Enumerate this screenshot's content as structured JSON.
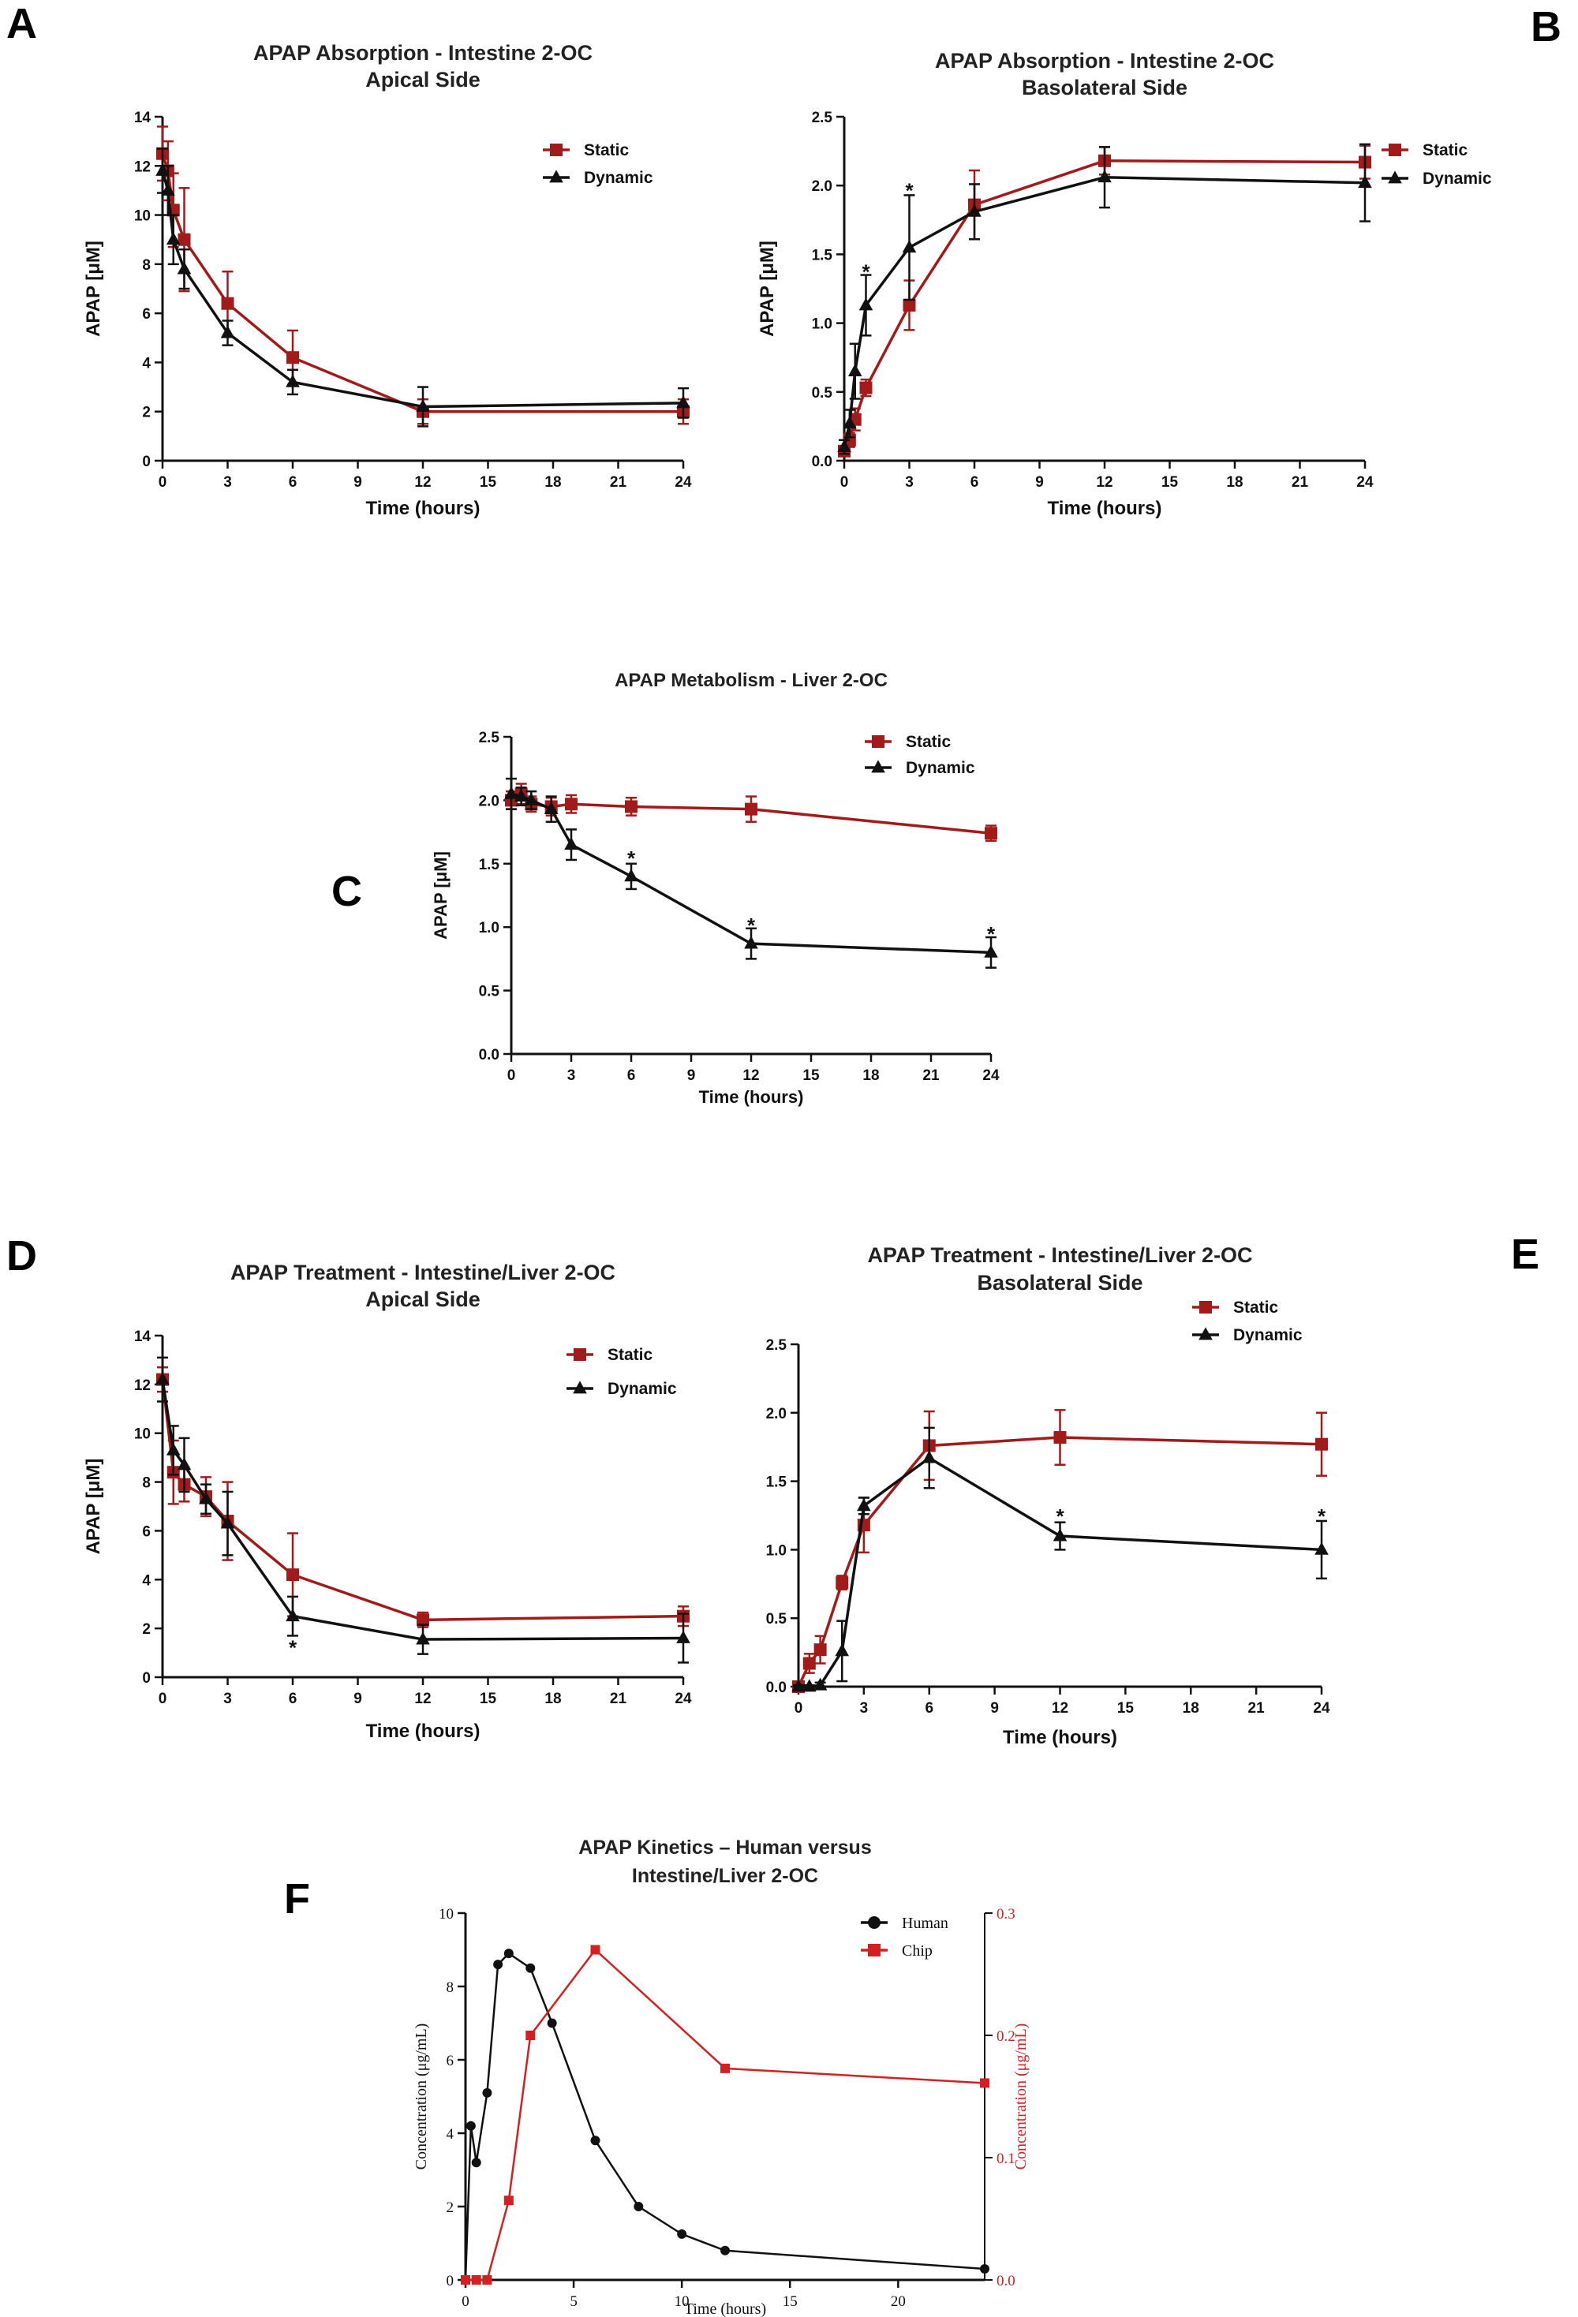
{
  "colors": {
    "static": "#a31a1a",
    "dynamic": "#111111",
    "human": "#111111",
    "chip": "#d42020"
  },
  "chart_data": [
    {
      "id": "A",
      "panel_label": "A",
      "type": "line",
      "title": [
        "APAP Absorption - Intestine 2-OC",
        "Apical Side"
      ],
      "xlabel": "Time (hours)",
      "ylabel": "APAP [μM]",
      "xlim": [
        0,
        24
      ],
      "xticks": [
        0,
        3,
        6,
        9,
        12,
        15,
        18,
        21,
        24
      ],
      "ylim": [
        0,
        14
      ],
      "yticks": [
        0,
        2,
        4,
        6,
        8,
        10,
        12,
        14
      ],
      "ytick_labels": [
        "0",
        "2",
        "4",
        "6",
        "8",
        "10",
        "12",
        "14"
      ],
      "legend": "top-right",
      "series": [
        {
          "name": "Static",
          "marker": "square",
          "color_key": "static",
          "x": [
            0,
            0.25,
            0.5,
            1,
            3,
            6,
            12,
            24
          ],
          "y": [
            12.5,
            11.8,
            10.2,
            9.0,
            6.4,
            4.2,
            2.0,
            2.0
          ],
          "err": [
            1.1,
            1.2,
            1.5,
            2.1,
            1.3,
            1.1,
            0.5,
            0.5
          ]
        },
        {
          "name": "Dynamic",
          "marker": "triangle",
          "color_key": "dynamic",
          "x": [
            0,
            0.25,
            0.5,
            1,
            3,
            6,
            12,
            24
          ],
          "y": [
            11.8,
            11.0,
            9.0,
            7.8,
            5.2,
            3.2,
            2.2,
            2.35
          ],
          "err": [
            0.9,
            1.0,
            1.0,
            0.8,
            0.5,
            0.5,
            0.8,
            0.6
          ]
        }
      ],
      "annotations": []
    },
    {
      "id": "B",
      "panel_label": "B",
      "type": "line",
      "title": [
        "APAP Absorption - Intestine 2-OC",
        "Basolateral Side"
      ],
      "xlabel": "Time (hours)",
      "ylabel": "APAP [μM]",
      "xlim": [
        0,
        24
      ],
      "xticks": [
        0,
        3,
        6,
        9,
        12,
        15,
        18,
        21,
        24
      ],
      "ylim": [
        0,
        2.5
      ],
      "yticks": [
        0,
        0.5,
        1,
        1.5,
        2,
        2.5
      ],
      "ytick_labels": [
        "0.0",
        "0.5",
        "1.0",
        "1.5",
        "2.0",
        "2.5"
      ],
      "legend": "top-right",
      "series": [
        {
          "name": "Static",
          "marker": "square",
          "color_key": "static",
          "x": [
            0,
            0.25,
            0.5,
            1,
            3,
            6,
            12,
            24
          ],
          "y": [
            0.07,
            0.15,
            0.3,
            0.53,
            1.13,
            1.86,
            2.18,
            2.17
          ],
          "err": [
            0.03,
            0.05,
            0.08,
            0.06,
            0.18,
            0.25,
            0.1,
            0.12
          ]
        },
        {
          "name": "Dynamic",
          "marker": "triangle",
          "color_key": "dynamic",
          "x": [
            0,
            0.25,
            0.5,
            1,
            3,
            6,
            12,
            24
          ],
          "y": [
            0.1,
            0.27,
            0.65,
            1.13,
            1.55,
            1.81,
            2.06,
            2.02
          ],
          "err": [
            0.05,
            0.1,
            0.2,
            0.22,
            0.38,
            0.2,
            0.22,
            0.28
          ]
        }
      ],
      "annotations": [
        {
          "text": "*",
          "x": 1,
          "y": 1.38
        },
        {
          "text": "*",
          "x": 3,
          "y": 1.97
        }
      ]
    },
    {
      "id": "C",
      "panel_label": "C",
      "type": "line",
      "title": [
        "APAP Metabolism - Liver 2-OC"
      ],
      "xlabel": "Time (hours)",
      "ylabel": "APAP [μM]",
      "xlim": [
        0,
        24
      ],
      "xticks": [
        0,
        3,
        6,
        9,
        12,
        15,
        18,
        21,
        24
      ],
      "ylim": [
        0,
        2.5
      ],
      "yticks": [
        0,
        0.5,
        1,
        1.5,
        2,
        2.5
      ],
      "ytick_labels": [
        "0.0",
        "0.5",
        "1.0",
        "1.5",
        "2.0",
        "2.5"
      ],
      "legend": "top-right",
      "series": [
        {
          "name": "Static",
          "marker": "square",
          "color_key": "static",
          "x": [
            0,
            0.5,
            1,
            2,
            3,
            6,
            12,
            24
          ],
          "y": [
            2.0,
            2.05,
            1.97,
            1.95,
            1.97,
            1.95,
            1.93,
            1.74
          ],
          "err": [
            0.07,
            0.08,
            0.06,
            0.07,
            0.07,
            0.07,
            0.1,
            0.06
          ]
        },
        {
          "name": "Dynamic",
          "marker": "triangle",
          "color_key": "dynamic",
          "x": [
            0,
            0.5,
            1,
            2,
            3,
            6,
            12,
            24
          ],
          "y": [
            2.05,
            2.03,
            2.0,
            1.93,
            1.65,
            1.4,
            0.87,
            0.8
          ],
          "err": [
            0.12,
            0.07,
            0.07,
            0.1,
            0.12,
            0.1,
            0.12,
            0.12
          ]
        }
      ],
      "annotations": [
        {
          "text": "*",
          "x": 6,
          "y": 1.55
        },
        {
          "text": "*",
          "x": 12,
          "y": 1.02
        },
        {
          "text": "*",
          "x": 24,
          "y": 0.95
        }
      ]
    },
    {
      "id": "D",
      "panel_label": "D",
      "type": "line",
      "title": [
        "APAP Treatment - Intestine/Liver 2-OC",
        "Apical Side"
      ],
      "xlabel": "Time (hours)",
      "ylabel": "APAP [μM]",
      "xlim": [
        0,
        24
      ],
      "xticks": [
        0,
        3,
        6,
        9,
        12,
        15,
        18,
        21,
        24
      ],
      "ylim": [
        0,
        14
      ],
      "yticks": [
        0,
        2,
        4,
        6,
        8,
        10,
        12,
        14
      ],
      "ytick_labels": [
        "0",
        "2",
        "4",
        "6",
        "8",
        "10",
        "12",
        "14"
      ],
      "legend": "top-right",
      "series": [
        {
          "name": "Static",
          "marker": "square",
          "color_key": "static",
          "x": [
            0,
            0.5,
            1,
            2,
            3,
            6,
            12,
            24
          ],
          "y": [
            12.2,
            8.4,
            7.9,
            7.4,
            6.4,
            4.2,
            2.35,
            2.5
          ],
          "err": [
            0.5,
            1.3,
            0.7,
            0.8,
            1.6,
            1.7,
            0.3,
            0.4
          ]
        },
        {
          "name": "Dynamic",
          "marker": "triangle",
          "color_key": "dynamic",
          "x": [
            0,
            0.5,
            1,
            2,
            3,
            6,
            12,
            24
          ],
          "y": [
            12.2,
            9.3,
            8.7,
            7.3,
            6.3,
            2.5,
            1.55,
            1.6
          ],
          "err": [
            0.9,
            1.0,
            1.1,
            0.6,
            1.3,
            0.8,
            0.6,
            1.0
          ]
        }
      ],
      "annotations": [
        {
          "text": "*",
          "x": 6,
          "y": 1.25
        }
      ]
    },
    {
      "id": "E",
      "panel_label": "E",
      "type": "line",
      "title": [
        "APAP Treatment - Intestine/Liver 2-OC",
        "Basolateral Side"
      ],
      "xlabel": "Time (hours)",
      "ylabel": "",
      "xlim": [
        0,
        24
      ],
      "xticks": [
        0,
        3,
        6,
        9,
        12,
        15,
        18,
        21,
        24
      ],
      "ylim": [
        0,
        2.5
      ],
      "yticks": [
        0,
        0.5,
        1,
        1.5,
        2,
        2.5
      ],
      "ytick_labels": [
        "0.0",
        "0.5",
        "1.0",
        "1.5",
        "2.0",
        "2.5"
      ],
      "legend": "top-right",
      "series": [
        {
          "name": "Static",
          "marker": "square",
          "color_key": "static",
          "x": [
            0,
            0.5,
            1,
            2,
            3,
            6,
            12,
            24
          ],
          "y": [
            0.0,
            0.17,
            0.27,
            0.76,
            1.18,
            1.76,
            1.82,
            1.77
          ],
          "err": [
            0.03,
            0.07,
            0.1,
            0.05,
            0.2,
            0.25,
            0.2,
            0.23
          ]
        },
        {
          "name": "Dynamic",
          "marker": "triangle",
          "color_key": "dynamic",
          "x": [
            0,
            0.5,
            1,
            2,
            3,
            6,
            12,
            24
          ],
          "y": [
            0.0,
            0.0,
            0.01,
            0.26,
            1.32,
            1.67,
            1.1,
            1.0
          ],
          "err": [
            0.01,
            0.01,
            0.02,
            0.22,
            0.06,
            0.22,
            0.1,
            0.21
          ]
        }
      ],
      "annotations": [
        {
          "text": "*",
          "x": 12,
          "y": 1.25
        },
        {
          "text": "*",
          "x": 24,
          "y": 1.25
        }
      ]
    },
    {
      "id": "F",
      "panel_label": "F",
      "type": "line",
      "title": [
        "APAP Kinetics – Human versus",
        "Intestine/Liver 2-OC"
      ],
      "xlabel": "Time (hours)",
      "ylabel": "Concentration (μg/mL)",
      "ylabel_right": "Concentration (μg/mL)",
      "xlim": [
        0,
        24
      ],
      "xticks": [
        0,
        5,
        10,
        15,
        20
      ],
      "ylim": [
        0,
        10
      ],
      "yticks": [
        0,
        2,
        4,
        6,
        8,
        10
      ],
      "ytick_labels": [
        "0",
        "2",
        "4",
        "6",
        "8",
        "10"
      ],
      "ylim_right": [
        0,
        0.3
      ],
      "yticks_right": [
        0,
        0.1,
        0.2,
        0.3
      ],
      "ytick_labels_right": [
        "0.0",
        "0.1",
        "0.2",
        "0.3"
      ],
      "legend": "top-right",
      "series": [
        {
          "name": "Human",
          "marker": "circle",
          "color_key": "human",
          "axis": "left",
          "x": [
            0,
            0.25,
            0.5,
            1,
            1.5,
            2,
            3,
            4,
            6,
            8,
            10,
            12,
            24
          ],
          "y": [
            0.0,
            4.2,
            3.2,
            5.1,
            8.6,
            8.9,
            8.5,
            7.0,
            3.8,
            2.0,
            1.25,
            0.8,
            0.3
          ]
        },
        {
          "name": "Chip",
          "marker": "square",
          "color_key": "chip",
          "axis": "right",
          "x": [
            0,
            0.5,
            1,
            2,
            3,
            6,
            12,
            24
          ],
          "y": [
            0.0,
            0.0,
            0.0,
            0.065,
            0.2,
            0.27,
            0.173,
            0.161
          ]
        }
      ],
      "annotations": []
    }
  ]
}
